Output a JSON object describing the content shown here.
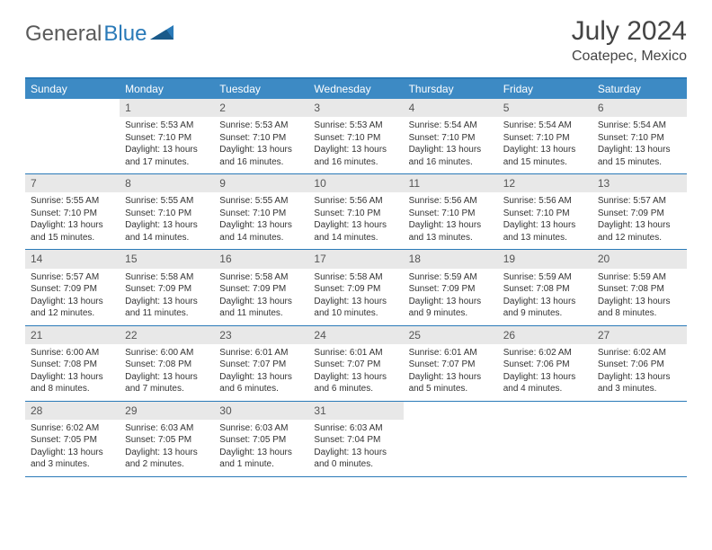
{
  "logo": {
    "text1": "General",
    "text2": "Blue"
  },
  "title": "July 2024",
  "location": "Coatepec, Mexico",
  "colors": {
    "header_bg": "#3d8ac4",
    "border": "#2a7ab8",
    "daynum_bg": "#e8e8e8",
    "text": "#333333",
    "logo_gray": "#5a5a5a",
    "page_bg": "#ffffff"
  },
  "day_names": [
    "Sunday",
    "Monday",
    "Tuesday",
    "Wednesday",
    "Thursday",
    "Friday",
    "Saturday"
  ],
  "weeks": [
    [
      {
        "n": "",
        "lines": []
      },
      {
        "n": "1",
        "lines": [
          "Sunrise: 5:53 AM",
          "Sunset: 7:10 PM",
          "Daylight: 13 hours",
          "and 17 minutes."
        ]
      },
      {
        "n": "2",
        "lines": [
          "Sunrise: 5:53 AM",
          "Sunset: 7:10 PM",
          "Daylight: 13 hours",
          "and 16 minutes."
        ]
      },
      {
        "n": "3",
        "lines": [
          "Sunrise: 5:53 AM",
          "Sunset: 7:10 PM",
          "Daylight: 13 hours",
          "and 16 minutes."
        ]
      },
      {
        "n": "4",
        "lines": [
          "Sunrise: 5:54 AM",
          "Sunset: 7:10 PM",
          "Daylight: 13 hours",
          "and 16 minutes."
        ]
      },
      {
        "n": "5",
        "lines": [
          "Sunrise: 5:54 AM",
          "Sunset: 7:10 PM",
          "Daylight: 13 hours",
          "and 15 minutes."
        ]
      },
      {
        "n": "6",
        "lines": [
          "Sunrise: 5:54 AM",
          "Sunset: 7:10 PM",
          "Daylight: 13 hours",
          "and 15 minutes."
        ]
      }
    ],
    [
      {
        "n": "7",
        "lines": [
          "Sunrise: 5:55 AM",
          "Sunset: 7:10 PM",
          "Daylight: 13 hours",
          "and 15 minutes."
        ]
      },
      {
        "n": "8",
        "lines": [
          "Sunrise: 5:55 AM",
          "Sunset: 7:10 PM",
          "Daylight: 13 hours",
          "and 14 minutes."
        ]
      },
      {
        "n": "9",
        "lines": [
          "Sunrise: 5:55 AM",
          "Sunset: 7:10 PM",
          "Daylight: 13 hours",
          "and 14 minutes."
        ]
      },
      {
        "n": "10",
        "lines": [
          "Sunrise: 5:56 AM",
          "Sunset: 7:10 PM",
          "Daylight: 13 hours",
          "and 14 minutes."
        ]
      },
      {
        "n": "11",
        "lines": [
          "Sunrise: 5:56 AM",
          "Sunset: 7:10 PM",
          "Daylight: 13 hours",
          "and 13 minutes."
        ]
      },
      {
        "n": "12",
        "lines": [
          "Sunrise: 5:56 AM",
          "Sunset: 7:10 PM",
          "Daylight: 13 hours",
          "and 13 minutes."
        ]
      },
      {
        "n": "13",
        "lines": [
          "Sunrise: 5:57 AM",
          "Sunset: 7:09 PM",
          "Daylight: 13 hours",
          "and 12 minutes."
        ]
      }
    ],
    [
      {
        "n": "14",
        "lines": [
          "Sunrise: 5:57 AM",
          "Sunset: 7:09 PM",
          "Daylight: 13 hours",
          "and 12 minutes."
        ]
      },
      {
        "n": "15",
        "lines": [
          "Sunrise: 5:58 AM",
          "Sunset: 7:09 PM",
          "Daylight: 13 hours",
          "and 11 minutes."
        ]
      },
      {
        "n": "16",
        "lines": [
          "Sunrise: 5:58 AM",
          "Sunset: 7:09 PM",
          "Daylight: 13 hours",
          "and 11 minutes."
        ]
      },
      {
        "n": "17",
        "lines": [
          "Sunrise: 5:58 AM",
          "Sunset: 7:09 PM",
          "Daylight: 13 hours",
          "and 10 minutes."
        ]
      },
      {
        "n": "18",
        "lines": [
          "Sunrise: 5:59 AM",
          "Sunset: 7:09 PM",
          "Daylight: 13 hours",
          "and 9 minutes."
        ]
      },
      {
        "n": "19",
        "lines": [
          "Sunrise: 5:59 AM",
          "Sunset: 7:08 PM",
          "Daylight: 13 hours",
          "and 9 minutes."
        ]
      },
      {
        "n": "20",
        "lines": [
          "Sunrise: 5:59 AM",
          "Sunset: 7:08 PM",
          "Daylight: 13 hours",
          "and 8 minutes."
        ]
      }
    ],
    [
      {
        "n": "21",
        "lines": [
          "Sunrise: 6:00 AM",
          "Sunset: 7:08 PM",
          "Daylight: 13 hours",
          "and 8 minutes."
        ]
      },
      {
        "n": "22",
        "lines": [
          "Sunrise: 6:00 AM",
          "Sunset: 7:08 PM",
          "Daylight: 13 hours",
          "and 7 minutes."
        ]
      },
      {
        "n": "23",
        "lines": [
          "Sunrise: 6:01 AM",
          "Sunset: 7:07 PM",
          "Daylight: 13 hours",
          "and 6 minutes."
        ]
      },
      {
        "n": "24",
        "lines": [
          "Sunrise: 6:01 AM",
          "Sunset: 7:07 PM",
          "Daylight: 13 hours",
          "and 6 minutes."
        ]
      },
      {
        "n": "25",
        "lines": [
          "Sunrise: 6:01 AM",
          "Sunset: 7:07 PM",
          "Daylight: 13 hours",
          "and 5 minutes."
        ]
      },
      {
        "n": "26",
        "lines": [
          "Sunrise: 6:02 AM",
          "Sunset: 7:06 PM",
          "Daylight: 13 hours",
          "and 4 minutes."
        ]
      },
      {
        "n": "27",
        "lines": [
          "Sunrise: 6:02 AM",
          "Sunset: 7:06 PM",
          "Daylight: 13 hours",
          "and 3 minutes."
        ]
      }
    ],
    [
      {
        "n": "28",
        "lines": [
          "Sunrise: 6:02 AM",
          "Sunset: 7:05 PM",
          "Daylight: 13 hours",
          "and 3 minutes."
        ]
      },
      {
        "n": "29",
        "lines": [
          "Sunrise: 6:03 AM",
          "Sunset: 7:05 PM",
          "Daylight: 13 hours",
          "and 2 minutes."
        ]
      },
      {
        "n": "30",
        "lines": [
          "Sunrise: 6:03 AM",
          "Sunset: 7:05 PM",
          "Daylight: 13 hours",
          "and 1 minute."
        ]
      },
      {
        "n": "31",
        "lines": [
          "Sunrise: 6:03 AM",
          "Sunset: 7:04 PM",
          "Daylight: 13 hours",
          "and 0 minutes."
        ]
      },
      {
        "n": "",
        "lines": []
      },
      {
        "n": "",
        "lines": []
      },
      {
        "n": "",
        "lines": []
      }
    ]
  ]
}
